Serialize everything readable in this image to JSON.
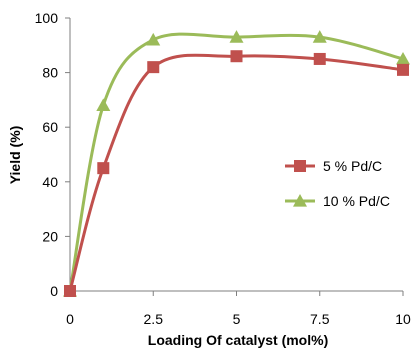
{
  "chart_data": {
    "type": "line",
    "xlabel": "Loading Of catalyst (mol%)",
    "ylabel": "Yield (%)",
    "xlim": [
      0,
      10
    ],
    "ylim": [
      0,
      100
    ],
    "xticks": [
      0,
      2.5,
      5,
      7.5,
      10
    ],
    "xtick_labels": [
      "0",
      "2.5",
      "5",
      "7.5",
      "10"
    ],
    "yticks": [
      0,
      20,
      40,
      60,
      80,
      100
    ],
    "ytick_labels": [
      "0",
      "20",
      "40",
      "60",
      "80",
      "100"
    ],
    "grid": false,
    "legend_position": "right",
    "series": [
      {
        "name": "5 % Pd/C",
        "color": "#c0504d",
        "marker": "square",
        "x": [
          0,
          1,
          2.5,
          5,
          7.5,
          10
        ],
        "y": [
          0,
          45,
          82,
          86,
          85,
          81
        ]
      },
      {
        "name": "10 % Pd/C",
        "color": "#9bbb59",
        "marker": "triangle",
        "x": [
          0,
          1,
          2.5,
          5,
          7.5,
          10
        ],
        "y": [
          0,
          68,
          92,
          93,
          93,
          85
        ]
      }
    ]
  }
}
